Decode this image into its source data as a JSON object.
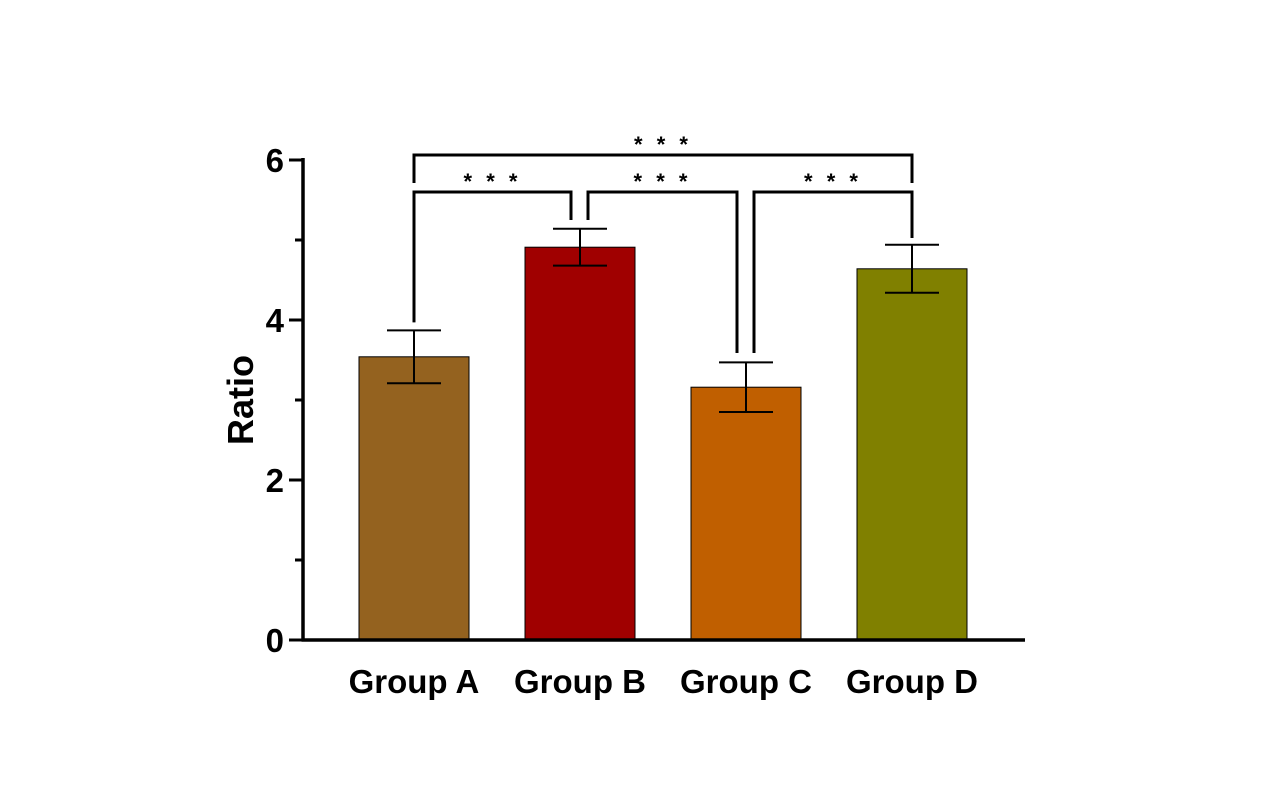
{
  "chart_data": {
    "type": "bar",
    "title": "",
    "xlabel": "",
    "ylabel": "Ratio",
    "ylim": [
      0,
      6
    ],
    "yticks": [
      0,
      2,
      4,
      6
    ],
    "grid": false,
    "categories": [
      "Group A",
      "Group B",
      "Group C",
      "Group D"
    ],
    "values": [
      3.54,
      4.91,
      3.16,
      4.64
    ],
    "errors": [
      0.33,
      0.23,
      0.31,
      0.3
    ],
    "colors": [
      "#94621F",
      "#A00000",
      "#C05F00",
      "#808000"
    ],
    "significance": [
      {
        "from": 0,
        "to": 3,
        "label": "* * *"
      },
      {
        "from": 0,
        "to": 1,
        "label": "* * *"
      },
      {
        "from": 1,
        "to": 2,
        "label": "* * *"
      },
      {
        "from": 2,
        "to": 3,
        "label": "* * *"
      }
    ]
  }
}
